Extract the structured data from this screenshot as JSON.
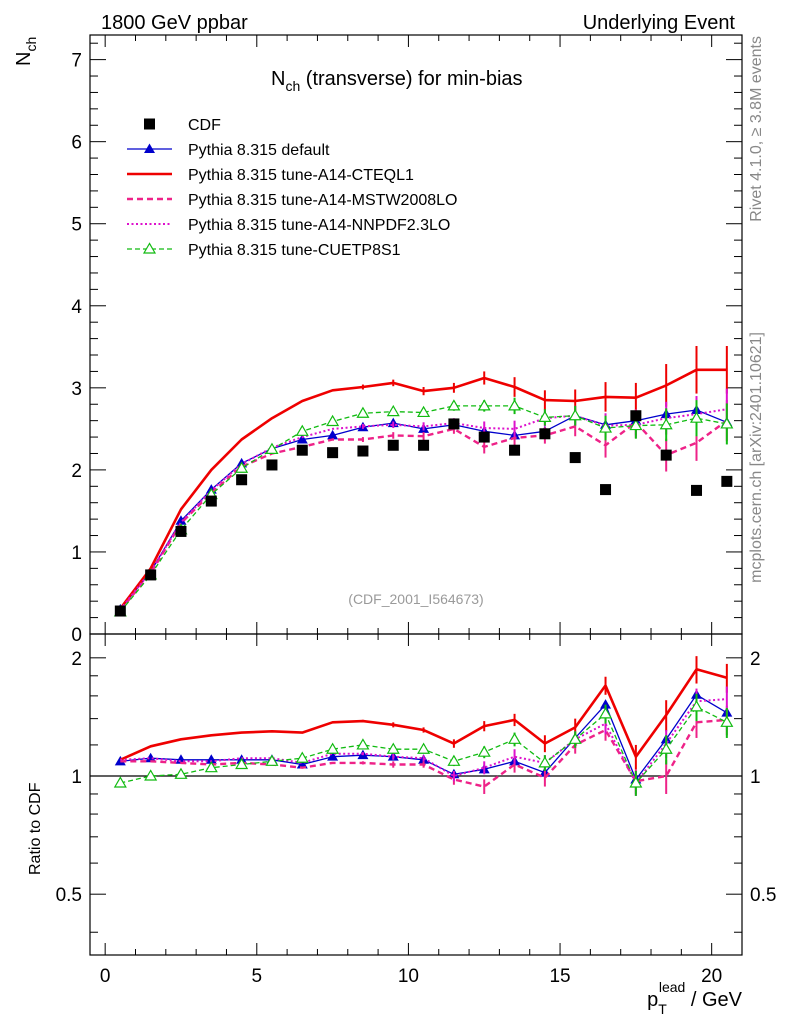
{
  "header": {
    "left_title": "1800 GeV ppbar",
    "right_title": "Underlying Event"
  },
  "side_labels": {
    "rivet": "Rivet 4.1.0, ≥ 3.8M events",
    "mcplots": "mcplots.cern.ch [arXiv:2401.10621]"
  },
  "chart_data": [
    {
      "type": "line",
      "title": "N_ch (transverse) for min-bias",
      "title_main": "N",
      "title_sub": "ch",
      "title_rest": " (transverse) for min-bias",
      "watermark": "(CDF_2001_I564673)",
      "ylabel_main": "N",
      "ylabel_sub": "ch",
      "xlim": [
        -0.5,
        21
      ],
      "ylim": [
        0,
        7.3
      ],
      "yticks": [
        0,
        1,
        2,
        3,
        4,
        5,
        6,
        7
      ],
      "ytick_labels": [
        "0",
        "1",
        "2",
        "3",
        "4",
        "5",
        "6",
        "7"
      ],
      "x": [
        0.5,
        1.5,
        2.5,
        3.5,
        4.5,
        5.5,
        6.5,
        7.5,
        8.5,
        9.5,
        10.5,
        11.5,
        12.5,
        13.5,
        14.5,
        15.5,
        16.5,
        17.5,
        18.5,
        19.5,
        20.5
      ],
      "series": [
        {
          "name": "CDF",
          "color": "#000000",
          "style": "markers",
          "marker": "square",
          "values": [
            0.28,
            0.72,
            1.25,
            1.62,
            1.88,
            2.06,
            2.24,
            2.21,
            2.23,
            2.3,
            2.3,
            2.56,
            2.4,
            2.24,
            2.44,
            2.15,
            1.76,
            2.66,
            2.18,
            1.75,
            1.86
          ]
        },
        {
          "name": "Pythia 8.315 default",
          "color": "#0000cc",
          "style": "solid-thin",
          "marker": "triangle",
          "values": [
            0.3,
            0.76,
            1.38,
            1.76,
            2.08,
            2.26,
            2.37,
            2.42,
            2.52,
            2.57,
            2.5,
            2.55,
            2.47,
            2.42,
            2.47,
            2.66,
            2.55,
            2.6,
            2.68,
            2.73,
            2.58
          ]
        },
        {
          "name": "Pythia 8.315 tune-A14-CTEQL1",
          "color": "#ee0000",
          "style": "solid-thick",
          "marker": "none",
          "values": [
            0.31,
            0.8,
            1.52,
            2.0,
            2.37,
            2.63,
            2.84,
            2.97,
            3.01,
            3.06,
            2.96,
            3.0,
            3.12,
            3.01,
            2.85,
            2.84,
            2.89,
            2.88,
            3.03,
            3.22,
            3.22
          ],
          "errors": [
            0,
            0,
            0,
            0,
            0,
            0,
            0,
            0,
            0.03,
            0.04,
            0.05,
            0.06,
            0.08,
            0.12,
            0.12,
            0.14,
            0.18,
            0.18,
            0.26,
            0.29,
            0.29
          ]
        },
        {
          "name": "Pythia 8.315 tune-A14-MSTW2008LO",
          "color": "#ee2288",
          "style": "dashed",
          "marker": "none",
          "values": [
            0.29,
            0.74,
            1.35,
            1.72,
            2.04,
            2.2,
            2.28,
            2.37,
            2.37,
            2.42,
            2.41,
            2.5,
            2.28,
            2.39,
            2.42,
            2.53,
            2.3,
            2.58,
            2.18,
            2.33,
            2.6
          ],
          "errors": [
            0,
            0,
            0,
            0,
            0,
            0,
            0,
            0,
            0.03,
            0.04,
            0.05,
            0.06,
            0.08,
            0.1,
            0.1,
            0.12,
            0.15,
            0.16,
            0.2,
            0.22,
            0.25
          ]
        },
        {
          "name": "Pythia 8.315 tune-A14-NNPDF2.3LO",
          "color": "#dd11cc",
          "style": "dotted",
          "marker": "none",
          "values": [
            0.3,
            0.76,
            1.36,
            1.75,
            2.07,
            2.27,
            2.4,
            2.5,
            2.53,
            2.55,
            2.53,
            2.57,
            2.51,
            2.5,
            2.63,
            2.66,
            2.54,
            2.55,
            2.63,
            2.68,
            2.74
          ],
          "errors": [
            0,
            0,
            0,
            0,
            0,
            0,
            0,
            0,
            0.03,
            0.04,
            0.05,
            0.06,
            0.08,
            0.1,
            0.1,
            0.12,
            0.15,
            0.16,
            0.2,
            0.22,
            0.25
          ]
        },
        {
          "name": "Pythia 8.315 tune-CUETP8S1",
          "color": "#11bb11",
          "style": "dashed-thin",
          "marker": "open-triangle",
          "values": [
            0.27,
            0.72,
            1.27,
            1.7,
            2.02,
            2.25,
            2.47,
            2.59,
            2.69,
            2.71,
            2.7,
            2.78,
            2.78,
            2.78,
            2.64,
            2.66,
            2.51,
            2.54,
            2.55,
            2.63,
            2.56
          ],
          "errors": [
            0,
            0,
            0,
            0,
            0,
            0,
            0,
            0,
            0.03,
            0.04,
            0.05,
            0.06,
            0.07,
            0.1,
            0.1,
            0.12,
            0.15,
            0.16,
            0.2,
            0.22,
            0.25
          ]
        }
      ]
    },
    {
      "type": "line",
      "title": "Ratio to CDF",
      "ylabel": "Ratio to CDF",
      "xlabel_main": "p",
      "xlabel_sup": "lead",
      "xlabel_sub": "T",
      "xlabel_rest": " / GeV",
      "xlim": [
        -0.5,
        21
      ],
      "ylim": [
        0.35,
        2.3
      ],
      "yscale": "log",
      "xticks": [
        0,
        5,
        10,
        15,
        20
      ],
      "xtick_labels": [
        "0",
        "5",
        "10",
        "15",
        "20"
      ],
      "yticks": [
        0.5,
        1,
        2
      ],
      "ytick_labels": [
        "0.5",
        "1",
        "2"
      ],
      "reference_line": 1,
      "x": [
        0.5,
        1.5,
        2.5,
        3.5,
        4.5,
        5.5,
        6.5,
        7.5,
        8.5,
        9.5,
        10.5,
        11.5,
        12.5,
        13.5,
        14.5,
        15.5,
        16.5,
        17.5,
        18.5,
        19.5,
        20.5
      ],
      "series": [
        {
          "name": "Pythia 8.315 default",
          "color": "#0000cc",
          "style": "solid-thin",
          "marker": "triangle",
          "values": [
            1.09,
            1.11,
            1.1,
            1.1,
            1.1,
            1.1,
            1.07,
            1.12,
            1.13,
            1.12,
            1.1,
            1.01,
            1.04,
            1.09,
            1.02,
            1.25,
            1.52,
            0.98,
            1.24,
            1.61,
            1.45
          ]
        },
        {
          "name": "Pythia 8.315 tune-A14-CTEQL1",
          "color": "#ee0000",
          "style": "solid-thick",
          "marker": "none",
          "values": [
            1.1,
            1.19,
            1.24,
            1.27,
            1.29,
            1.3,
            1.29,
            1.37,
            1.38,
            1.35,
            1.31,
            1.21,
            1.34,
            1.39,
            1.21,
            1.33,
            1.7,
            1.12,
            1.43,
            1.87,
            1.78
          ],
          "errors": [
            0,
            0,
            0,
            0,
            0,
            0,
            0,
            0,
            0.01,
            0.02,
            0.02,
            0.03,
            0.04,
            0.05,
            0.06,
            0.07,
            0.09,
            0.08,
            0.13,
            0.15,
            0.15
          ]
        },
        {
          "name": "Pythia 8.315 tune-A14-MSTW2008LO",
          "color": "#ee2288",
          "style": "dashed",
          "marker": "none",
          "values": [
            1.09,
            1.09,
            1.08,
            1.07,
            1.08,
            1.07,
            1.05,
            1.08,
            1.08,
            1.07,
            1.07,
            0.98,
            0.94,
            1.07,
            0.99,
            1.2,
            1.31,
            0.97,
            1.0,
            1.37,
            1.39
          ],
          "errors": [
            0,
            0,
            0,
            0,
            0,
            0,
            0,
            0,
            0.01,
            0.02,
            0.02,
            0.03,
            0.04,
            0.05,
            0.05,
            0.06,
            0.08,
            0.07,
            0.1,
            0.12,
            0.12
          ]
        },
        {
          "name": "Pythia 8.315 tune-A14-NNPDF2.3LO",
          "color": "#dd11cc",
          "style": "dotted",
          "marker": "none",
          "values": [
            1.1,
            1.11,
            1.09,
            1.09,
            1.11,
            1.11,
            1.08,
            1.14,
            1.14,
            1.12,
            1.11,
            1.0,
            1.05,
            1.12,
            1.08,
            1.24,
            1.36,
            0.96,
            1.21,
            1.55,
            1.57
          ],
          "errors": [
            0,
            0,
            0,
            0,
            0,
            0,
            0,
            0,
            0.01,
            0.02,
            0.02,
            0.03,
            0.04,
            0.05,
            0.05,
            0.06,
            0.08,
            0.07,
            0.1,
            0.12,
            0.12
          ]
        },
        {
          "name": "Pythia 8.315 tune-CUETP8S1",
          "color": "#11bb11",
          "style": "dashed-thin",
          "marker": "open-triangle",
          "values": [
            0.96,
            1.0,
            1.01,
            1.05,
            1.07,
            1.09,
            1.11,
            1.17,
            1.2,
            1.17,
            1.17,
            1.09,
            1.15,
            1.24,
            1.08,
            1.24,
            1.44,
            0.96,
            1.17,
            1.5,
            1.37
          ],
          "errors": [
            0,
            0,
            0,
            0,
            0,
            0,
            0,
            0,
            0.01,
            0.02,
            0.02,
            0.03,
            0.04,
            0.05,
            0.05,
            0.06,
            0.08,
            0.07,
            0.1,
            0.12,
            0.12
          ]
        }
      ]
    }
  ]
}
